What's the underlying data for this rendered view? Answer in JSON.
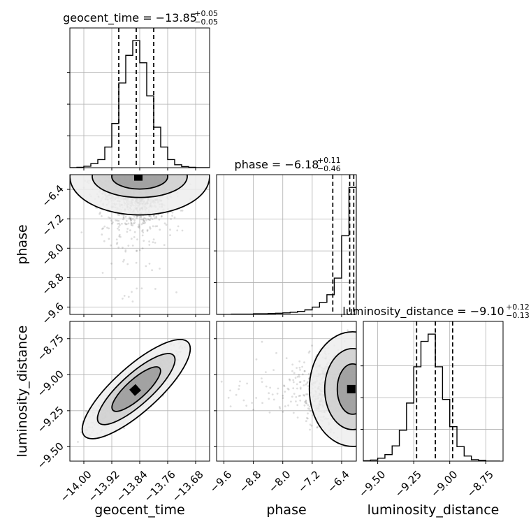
{
  "chart_data": {
    "type": "corner",
    "parameters": [
      "geocent_time",
      "phase",
      "luminosity_distance"
    ],
    "axis_labels": [
      "geocent_time",
      "phase",
      "luminosity_distance"
    ],
    "ranges": [
      [
        -14.04,
        -13.64
      ],
      [
        -9.8,
        -6.0
      ],
      [
        -9.6,
        -8.63
      ]
    ],
    "ticks": [
      [
        -14.0,
        -13.92,
        -13.84,
        -13.76,
        -13.68
      ],
      [
        -9.6,
        -8.8,
        -8.0,
        -7.2,
        -6.4
      ],
      [
        -9.5,
        -9.25,
        -9.0,
        -8.75
      ]
    ],
    "tick_labels": [
      [
        "−14.00",
        "−13.92",
        "−13.84",
        "−13.76",
        "−13.68"
      ],
      [
        "−9.6",
        "−8.8",
        "−8.0",
        "−7.2",
        "−6.4"
      ],
      [
        "−9.50",
        "−9.25",
        "−9.00",
        "−8.75"
      ]
    ],
    "titles": [
      {
        "main": "geocent_time = −13.85",
        "upper": "+0.05",
        "lower": "−0.05"
      },
      {
        "main": "phase = −6.18",
        "upper": "+0.11",
        "lower": "−0.46"
      },
      {
        "main": "luminosity_distance = −9.10",
        "upper": "+0.12",
        "lower": "−0.13"
      }
    ],
    "quantiles": [
      [
        -13.9,
        -13.85,
        -13.8
      ],
      [
        -6.64,
        -6.18,
        -6.07
      ],
      [
        -9.23,
        -9.1,
        -8.98
      ]
    ],
    "histograms": [
      {
        "edges": [
          -14.04,
          -14.02,
          -14.0,
          -13.98,
          -13.96,
          -13.94,
          -13.92,
          -13.9,
          -13.88,
          -13.86,
          -13.84,
          -13.82,
          -13.8,
          -13.78,
          -13.76,
          -13.74,
          -13.72,
          -13.7,
          -13.68,
          -13.66,
          -13.64
        ],
        "counts": [
          0,
          1,
          4,
          11,
          22,
          56,
          120,
          230,
          305,
          345,
          285,
          195,
          110,
          56,
          22,
          8,
          3,
          1,
          0,
          0
        ]
      },
      {
        "edges": [
          -9.8,
          -9.6,
          -9.4,
          -9.2,
          -9.0,
          -8.8,
          -8.6,
          -8.4,
          -8.2,
          -8.0,
          -7.8,
          -7.6,
          -7.4,
          -7.2,
          -7.0,
          -6.8,
          -6.6,
          -6.4,
          -6.2,
          -6.0
        ],
        "counts": [
          0,
          0,
          1,
          1,
          1,
          2,
          2,
          3,
          4,
          5,
          7,
          10,
          15,
          24,
          40,
          65,
          120,
          260,
          420
        ]
      },
      {
        "edges": [
          -9.6,
          -9.55,
          -9.5,
          -9.45,
          -9.4,
          -9.35,
          -9.3,
          -9.25,
          -9.2,
          -9.15,
          -9.1,
          -9.05,
          -9.0,
          -8.95,
          -8.9,
          -8.85,
          -8.8,
          -8.75,
          -8.7,
          -8.65
        ],
        "counts": [
          1,
          3,
          8,
          18,
          42,
          85,
          160,
          260,
          330,
          350,
          260,
          170,
          95,
          40,
          14,
          4,
          2,
          0,
          0
        ]
      }
    ],
    "grid": true,
    "quantile_line_style": "dashed",
    "sample_color": "#000000"
  }
}
